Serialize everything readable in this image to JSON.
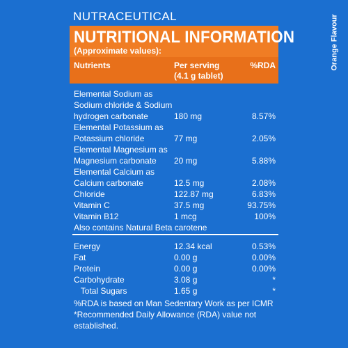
{
  "brand": "NUTRACEUTICAL",
  "flavour": "Orange Flavour",
  "panel": {
    "title": "NUTRITIONAL INFORMATION",
    "subtitle": "(Approximate values):",
    "headers": {
      "nutrients": "Nutrients",
      "per_serving_1": "Per serving",
      "per_serving_2": "(4.1 g tablet)",
      "rda": "%RDA"
    }
  },
  "rows": [
    {
      "name": "Elemental Sodium as",
      "serving": "",
      "rda": ""
    },
    {
      "name": "Sodium chloride & Sodium",
      "serving": "",
      "rda": ""
    },
    {
      "name": "hydrogen carbonate",
      "serving": "180 mg",
      "rda": "8.57%"
    },
    {
      "name": "Elemental Potassium as",
      "serving": "",
      "rda": ""
    },
    {
      "name": "Potassium chloride",
      "serving": "77 mg",
      "rda": "2.05%"
    },
    {
      "name": "Elemental Magnesium as",
      "serving": "",
      "rda": ""
    },
    {
      "name": "Magnesium carbonate",
      "serving": "20 mg",
      "rda": "5.88%"
    },
    {
      "name": "Elemental Calcium as",
      "serving": "",
      "rda": ""
    },
    {
      "name": "Calcium carbonate",
      "serving": "12.5 mg",
      "rda": "2.08%"
    },
    {
      "name": "Chloride",
      "serving": "122.87 mg",
      "rda": "6.83%"
    },
    {
      "name": "Vitamin C",
      "serving": "37.5 mg",
      "rda": "93.75%"
    },
    {
      "name": "Vitamin B12",
      "serving": "1 mcg",
      "rda": "100%"
    },
    {
      "name": "Also contains Natural Beta carotene",
      "serving": "",
      "rda": ""
    }
  ],
  "energy_rows": [
    {
      "name": "Energy",
      "serving": "12.34 kcal",
      "rda": "0.53%"
    },
    {
      "name": "Fat",
      "serving": "0.00 g",
      "rda": "0.00%"
    },
    {
      "name": "Protein",
      "serving": "0.00 g",
      "rda": "0.00%"
    },
    {
      "name": "Carbohydrate",
      "serving": "3.08 g",
      "rda": "*"
    },
    {
      "name": "   Total Sugars",
      "serving": "1.65 g",
      "rda": "*"
    }
  ],
  "footnotes": [
    "%RDA is based on Man Sedentary Work as per ICMR",
    "*Recommended Daily Allowance (RDA) value not",
    "established."
  ]
}
